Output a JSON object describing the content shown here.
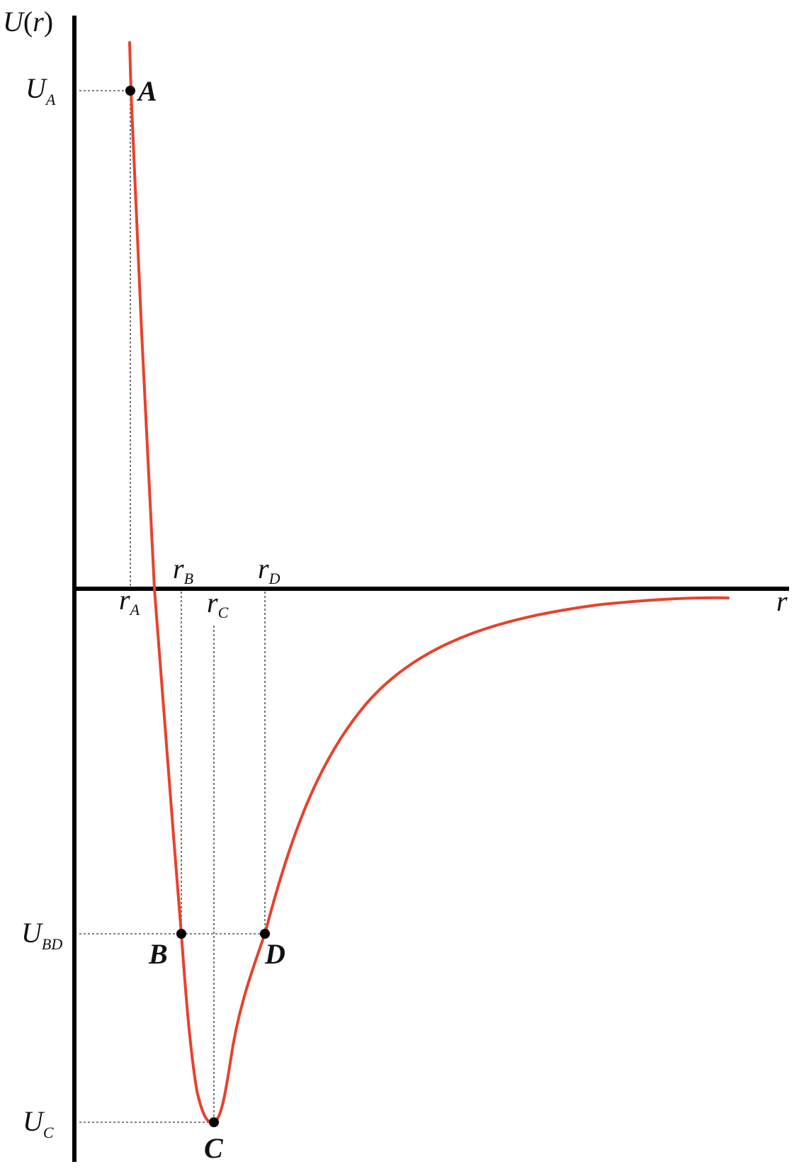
{
  "diagram": {
    "y_axis_label": "U(r)",
    "y_axis_label_parts": {
      "U": "U",
      "open": "(",
      "r": "r",
      "close": ")"
    },
    "x_axis_label": "r",
    "energy_levels": [
      {
        "main": "U",
        "sub": "A"
      },
      {
        "main": "U",
        "sub": "BD"
      },
      {
        "main": "U",
        "sub": "C"
      }
    ],
    "positions": [
      {
        "main": "r",
        "sub": "A"
      },
      {
        "main": "r",
        "sub": "B"
      },
      {
        "main": "r",
        "sub": "C"
      },
      {
        "main": "r",
        "sub": "D"
      }
    ],
    "points": [
      "A",
      "B",
      "C",
      "D"
    ],
    "colors": {
      "curve": "#e8412c",
      "axes": "#000000",
      "guides": "#555555"
    }
  }
}
